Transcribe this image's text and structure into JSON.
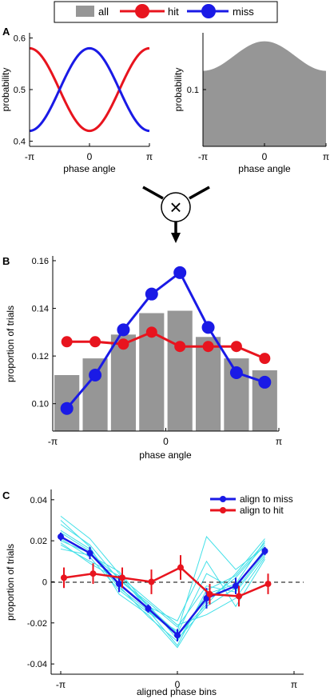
{
  "panel_labels": {
    "a": "A",
    "b": "B",
    "c": "C"
  },
  "legend_top": {
    "all": "all",
    "hit": "hit",
    "miss": "miss"
  },
  "colors": {
    "hit": "#e8141e",
    "miss": "#1a1ae6",
    "bar": "#969696",
    "cyan": "#43e0e8"
  },
  "operator_symbol": "×",
  "chart_data": [
    {
      "id": "a-left",
      "type": "line",
      "xlabel": "phase angle",
      "ylabel": "probability",
      "xticks": [
        "-π",
        "0",
        "π"
      ],
      "yticks": [
        "0.4",
        "0.5",
        "0.6"
      ],
      "xlim": [
        -3.1416,
        3.1416
      ],
      "ylim": [
        0.39,
        0.61
      ],
      "series": [
        {
          "name": "hit",
          "color": "#e8141e",
          "function": "0.5 + 0.08*cos(x + π)"
        },
        {
          "name": "miss",
          "color": "#1a1ae6",
          "function": "0.5 + 0.08*cos(x)"
        }
      ]
    },
    {
      "id": "a-right",
      "type": "area",
      "xlabel": "phase angle",
      "ylabel": "probability",
      "xticks": [
        "-π",
        "0",
        "π"
      ],
      "yticks": [
        "0.1"
      ],
      "xlim": [
        -3.1416,
        3.1416
      ],
      "ylim": [
        0,
        0.2
      ],
      "series": [
        {
          "name": "all",
          "color": "#969696",
          "function": "0.159 + 0.026*cos(x)"
        }
      ]
    },
    {
      "id": "b",
      "type": "bar",
      "xlabel": "phase angle",
      "ylabel": "proportion of trials",
      "xticks": [
        "-π",
        "0",
        "π"
      ],
      "yticks": [
        "0.10",
        "0.12",
        "0.14",
        "0.16"
      ],
      "xlim": [
        -3.1416,
        3.1416
      ],
      "ylim": [
        0.0885,
        0.162
      ],
      "x": [
        -2.749,
        -1.963,
        -1.178,
        -0.393,
        0.393,
        1.178,
        1.963,
        2.749
      ],
      "bars": [
        0.112,
        0.119,
        0.129,
        0.138,
        0.139,
        0.128,
        0.119,
        0.114
      ],
      "series": [
        {
          "name": "hit",
          "color": "#e8141e",
          "values": [
            0.126,
            0.126,
            0.125,
            0.13,
            0.124,
            0.124,
            0.124,
            0.119
          ]
        },
        {
          "name": "miss",
          "color": "#1a1ae6",
          "values": [
            0.098,
            0.112,
            0.131,
            0.146,
            0.155,
            0.132,
            0.113,
            0.109
          ]
        }
      ]
    },
    {
      "id": "c",
      "type": "line",
      "xlabel": "aligned phase bins",
      "ylabel": "proportion of trials",
      "xticks": [
        "-π",
        "0",
        "π"
      ],
      "yticks": [
        "-0.04",
        "-0.02",
        "0",
        "0.02",
        "0.04"
      ],
      "xlim": [
        -3.4,
        3.4
      ],
      "ylim": [
        -0.045,
        0.045
      ],
      "legend": {
        "position": "top-right",
        "entries": [
          "align to miss",
          "align to hit"
        ]
      },
      "x": [
        -3.1416,
        -2.3562,
        -1.5708,
        -0.7854,
        0,
        0.7854,
        1.5708,
        2.3562
      ],
      "series": [
        {
          "name": "align to miss",
          "color": "#1a1ae6",
          "values": [
            0.022,
            0.014,
            -0.001,
            -0.013,
            -0.026,
            -0.008,
            -0.002,
            0.015
          ],
          "errors": [
            0.002,
            0.003,
            0.004,
            0.002,
            0.003,
            0.005,
            0.004,
            0.002
          ]
        },
        {
          "name": "align to hit",
          "color": "#e8141e",
          "values": [
            0.002,
            0.004,
            0.002,
            0.0,
            0.007,
            -0.006,
            -0.007,
            -0.001
          ],
          "errors": [
            0.005,
            0.005,
            0.005,
            0.006,
            0.006,
            0.005,
            0.005,
            0.005
          ]
        }
      ],
      "individual_traces": [
        [
          0.032,
          0.021,
          0.004,
          -0.014,
          -0.031,
          -0.004,
          0.003,
          0.019
        ],
        [
          0.028,
          0.018,
          0.001,
          -0.011,
          -0.028,
          -0.012,
          -0.003,
          0.016
        ],
        [
          0.021,
          0.012,
          -0.004,
          -0.015,
          -0.024,
          0.022,
          0.006,
          0.017
        ],
        [
          0.018,
          0.01,
          0.003,
          -0.009,
          -0.021,
          -0.016,
          -0.008,
          0.012
        ],
        [
          0.025,
          0.016,
          -0.002,
          -0.017,
          -0.029,
          -0.006,
          -0.001,
          0.02
        ],
        [
          0.016,
          0.013,
          0.005,
          -0.012,
          -0.019,
          0.01,
          -0.012,
          0.011
        ],
        [
          0.03,
          0.017,
          -0.006,
          -0.016,
          -0.032,
          -0.009,
          0.002,
          0.018
        ],
        [
          0.019,
          0.009,
          0.001,
          -0.01,
          -0.022,
          -0.002,
          -0.005,
          0.013
        ],
        [
          0.024,
          0.015,
          -0.003,
          -0.014,
          -0.026,
          -0.011,
          0.004,
          0.021
        ],
        [
          0.02,
          0.014,
          0.002,
          -0.012,
          -0.025,
          0.004,
          -0.004,
          0.014
        ]
      ]
    }
  ]
}
